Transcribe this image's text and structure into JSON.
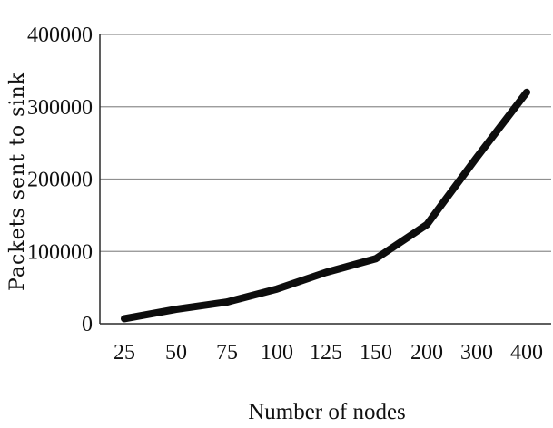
{
  "chart_data": {
    "type": "line",
    "title": "",
    "xlabel": "Number of nodes",
    "ylabel": "Packets sent to sink",
    "categories": [
      "25",
      "50",
      "75",
      "100",
      "125",
      "150",
      "200",
      "300",
      "400"
    ],
    "series": [
      {
        "values": [
          7000,
          20000,
          30000,
          48000,
          71000,
          90000,
          137000,
          230000,
          320000
        ]
      }
    ],
    "ylim": [
      0,
      400000
    ],
    "yticks": [
      "0",
      "100000",
      "200000",
      "300000",
      "400000"
    ],
    "grid": true,
    "legend": "none",
    "colors": {
      "line": "#0d0d0d",
      "grid": "#8f8f8f",
      "axis": "#2a2a2a"
    }
  }
}
